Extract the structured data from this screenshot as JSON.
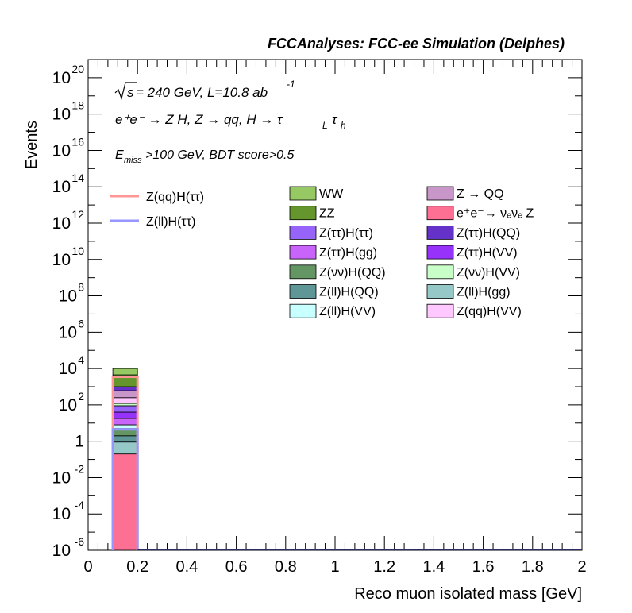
{
  "header": {
    "title": "FCCAnalyses: FCC-ee Simulation (Delphes)"
  },
  "annotations": {
    "energy_prefix": "s",
    "energy_text": " = 240 GeV, L=10.8 ab",
    "lumi_exp": "-1",
    "process_line": "e⁺e⁻ → Z H, Z → qq, H → τ",
    "tau_sub_l": "L",
    "tau": "τ",
    "tau_sub_h": "h",
    "cut_prefix": "E",
    "cut_sub": "miss",
    "cut_text": ">100 GeV, BDT score>0.5"
  },
  "chart_data": {
    "type": "bar",
    "title": "",
    "xlabel": "Reco muon isolated mass [GeV]",
    "ylabel": "Events",
    "xlim": [
      0,
      2
    ],
    "ylim": [
      1e-06,
      1e+21
    ],
    "ylog": true,
    "x_ticks": [
      "0",
      "0.2",
      "0.4",
      "0.6",
      "0.8",
      "1",
      "1.2",
      "1.4",
      "1.6",
      "1.8",
      "2"
    ],
    "y_ticks": [
      {
        "value": 1e-06,
        "base": "10",
        "exp": "-6"
      },
      {
        "value": 0.0001,
        "base": "10",
        "exp": "-4"
      },
      {
        "value": 0.01,
        "base": "10",
        "exp": "-2"
      },
      {
        "value": 1,
        "base": "1",
        "exp": ""
      },
      {
        "value": 100.0,
        "base": "10",
        "exp": "2"
      },
      {
        "value": 10000.0,
        "base": "10",
        "exp": "4"
      },
      {
        "value": 1000000.0,
        "base": "10",
        "exp": "6"
      },
      {
        "value": 100000000.0,
        "base": "10",
        "exp": "8"
      },
      {
        "value": 10000000000.0,
        "base": "10",
        "exp": "10"
      },
      {
        "value": 1000000000000.0,
        "base": "10",
        "exp": "12"
      },
      {
        "value": 100000000000000.0,
        "base": "10",
        "exp": "14"
      },
      {
        "value": 1e+16,
        "base": "10",
        "exp": "16"
      },
      {
        "value": 1e+18,
        "base": "10",
        "exp": "18"
      },
      {
        "value": 1e+20,
        "base": "10",
        "exp": "20"
      }
    ],
    "bin": [
      0.1,
      0.2
    ],
    "stack": [
      {
        "name": "e⁺e⁻→ νₑνₑ Z",
        "low": 1e-06,
        "high": 0.2,
        "color": "#fe6f94"
      },
      {
        "name": "Z(ll)H(gg)",
        "low": 0.2,
        "high": 0.9,
        "color": "#96c8c8"
      },
      {
        "name": "Z(ll)H(QQ)",
        "low": 0.9,
        "high": 2.0,
        "color": "#5f9696"
      },
      {
        "name": "Z(νν)H(QQ)",
        "low": 2.0,
        "high": 5.0,
        "color": "#649664"
      },
      {
        "name": "Z(ll)H(VV)",
        "low": 5.0,
        "high": 8.0,
        "color": "#c8ffff"
      },
      {
        "name": "Z(ττ)H(gg)",
        "low": 8.0,
        "high": 18.0,
        "color": "#c864fa"
      },
      {
        "name": "Z(ττ)H(VV)",
        "low": 18.0,
        "high": 40.0,
        "color": "#9632fa"
      },
      {
        "name": "Z(ττ)H(ττ)",
        "low": 40.0,
        "high": 90.0,
        "color": "#9664fa"
      },
      {
        "name": "Z(νν)H(VV)",
        "low": 90.0,
        "high": 120.0,
        "color": "#c8ffc8"
      },
      {
        "name": "Z(qq)H(VV)",
        "low": 120.0,
        "high": 250.0,
        "color": "#ffc8ff"
      },
      {
        "name": "Z → QQ",
        "low": 250.0,
        "high": 600.0,
        "color": "#c896c8"
      },
      {
        "name": "Z(ττ)H(QQ)",
        "low": 600.0,
        "high": 1000.0,
        "color": "#6432c8"
      },
      {
        "name": "ZZ",
        "low": 1000.0,
        "high": 4500.0,
        "color": "#64962d"
      },
      {
        "name": "WW",
        "low": 4500.0,
        "high": 10000.0,
        "color": "#96c864"
      }
    ],
    "lines": [
      {
        "name": "Z(qq)H(ττ)",
        "value": 3500,
        "color": "#ff9696"
      },
      {
        "name": "Z(ll)H(ττ)",
        "value": 4.5,
        "color": "#9696ff"
      }
    ],
    "legend_left": [
      {
        "name": "Z(qq)H(ττ)",
        "color": "#ff9696",
        "kind": "line"
      },
      {
        "name": "Z(ll)H(ττ)",
        "color": "#9696ff",
        "kind": "line"
      }
    ],
    "legend_col1": [
      {
        "name": "WW",
        "color": "#96c864"
      },
      {
        "name": "ZZ",
        "color": "#64962d"
      },
      {
        "name": "Z(ττ)H(ττ)",
        "color": "#9664fa"
      },
      {
        "name": "Z(ττ)H(gg)",
        "color": "#c864fa"
      },
      {
        "name": "Z(νν)H(QQ)",
        "color": "#649664"
      },
      {
        "name": "Z(ll)H(QQ)",
        "color": "#5f9696"
      },
      {
        "name": "Z(ll)H(VV)",
        "color": "#c8ffff"
      }
    ],
    "legend_col2": [
      {
        "name": "Z → QQ",
        "color": "#c896c8"
      },
      {
        "name": "e⁺e⁻→ νₑνₑ Z",
        "color": "#fe6f94"
      },
      {
        "name": "Z(ττ)H(QQ)",
        "color": "#6432c8"
      },
      {
        "name": "Z(ττ)H(VV)",
        "color": "#9632fa"
      },
      {
        "name": "Z(νν)H(VV)",
        "color": "#c8ffc8"
      },
      {
        "name": "Z(ll)H(gg)",
        "color": "#96c8c8"
      },
      {
        "name": "Z(qq)H(VV)",
        "color": "#ffc8ff"
      }
    ]
  }
}
